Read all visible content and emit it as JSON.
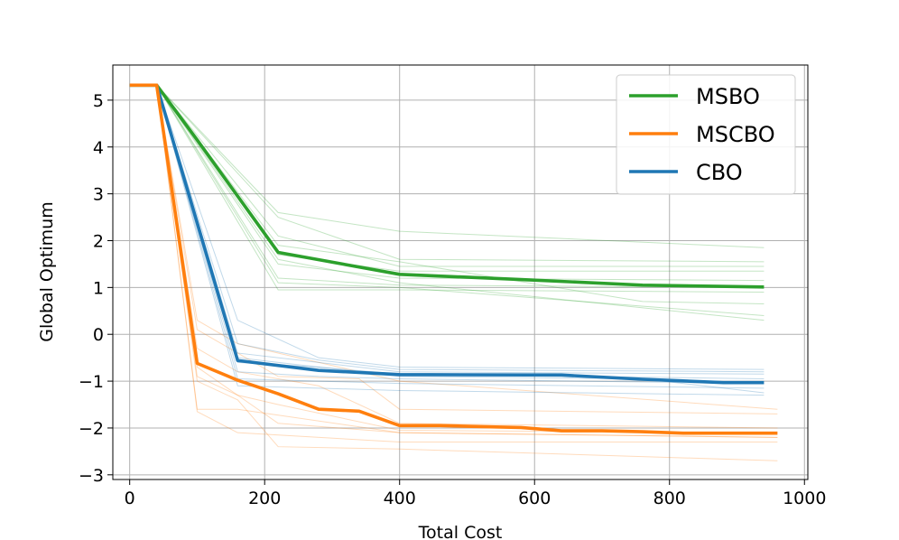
{
  "chart_data": {
    "type": "line",
    "xlabel": "Total Cost",
    "ylabel": "Global Optimum",
    "xlim": [
      -25,
      1005
    ],
    "ylim": [
      -3.1,
      5.75
    ],
    "xticks": [
      0,
      200,
      400,
      600,
      800,
      1000
    ],
    "xtick_labels": [
      "0",
      "200",
      "400",
      "600",
      "800",
      "1000"
    ],
    "yticks": [
      -3,
      -2,
      -1,
      0,
      1,
      2,
      3,
      4,
      5
    ],
    "ytick_labels": [
      "−3",
      "−2",
      "−1",
      "0",
      "1",
      "2",
      "3",
      "4",
      "5"
    ],
    "grid": true,
    "legend_position": "top-right",
    "series": [
      {
        "name": "MSBO",
        "color": "#2ca02c",
        "x": [
          0,
          40,
          100,
          220,
          400,
          580,
          760,
          940
        ],
        "y": [
          5.32,
          5.32,
          4.15,
          1.75,
          1.28,
          1.17,
          1.05,
          1.01
        ],
        "runs": [
          {
            "x": [
              40,
              220,
              400,
              940
            ],
            "y": [
              5.32,
              2.6,
              2.2,
              1.85
            ]
          },
          {
            "x": [
              40,
              220,
              400,
              940
            ],
            "y": [
              5.32,
              2.5,
              1.6,
              1.55
            ]
          },
          {
            "x": [
              40,
              220,
              400,
              940
            ],
            "y": [
              5.32,
              2.1,
              1.45,
              1.45
            ]
          },
          {
            "x": [
              40,
              220,
              400,
              940
            ],
            "y": [
              5.32,
              1.7,
              1.35,
              1.35
            ]
          },
          {
            "x": [
              40,
              220,
              400,
              940
            ],
            "y": [
              5.32,
              1.5,
              1.2,
              1.15
            ]
          },
          {
            "x": [
              40,
              220,
              400,
              940
            ],
            "y": [
              5.32,
              1.2,
              1.05,
              1.0
            ]
          },
          {
            "x": [
              40,
              220,
              400,
              940
            ],
            "y": [
              5.32,
              0.95,
              0.95,
              0.9
            ]
          },
          {
            "x": [
              40,
              220,
              400,
              760,
              940
            ],
            "y": [
              5.32,
              1.9,
              1.55,
              0.7,
              0.65
            ]
          },
          {
            "x": [
              40,
              220,
              400,
              940
            ],
            "y": [
              5.32,
              1.1,
              1.0,
              0.4
            ]
          },
          {
            "x": [
              40,
              220,
              400,
              940
            ],
            "y": [
              5.32,
              1.6,
              1.1,
              0.3
            ]
          }
        ]
      },
      {
        "name": "MSCBO",
        "color": "#ff7f0e",
        "x": [
          0,
          40,
          100,
          160,
          220,
          280,
          340,
          400,
          460,
          520,
          580,
          640,
          700,
          760,
          820,
          880,
          960
        ],
        "y": [
          5.32,
          5.32,
          -0.62,
          -0.98,
          -1.27,
          -1.6,
          -1.64,
          -1.95,
          -1.95,
          -1.97,
          -1.99,
          -2.06,
          -2.06,
          -2.08,
          -2.11,
          -2.11,
          -2.11
        ],
        "runs": [
          {
            "x": [
              40,
              100,
              160,
              220,
              400,
              960
            ],
            "y": [
              5.32,
              0.3,
              -0.2,
              -0.4,
              -1.0,
              -1.6
            ]
          },
          {
            "x": [
              40,
              100,
              160,
              220,
              340,
              400,
              960
            ],
            "y": [
              5.32,
              0.1,
              -0.4,
              -0.9,
              -0.95,
              -1.6,
              -1.7
            ]
          },
          {
            "x": [
              40,
              100,
              160,
              280,
              400,
              960
            ],
            "y": [
              5.32,
              -0.3,
              -0.8,
              -1.1,
              -1.9,
              -2.0
            ]
          },
          {
            "x": [
              40,
              100,
              160,
              220,
              400,
              960
            ],
            "y": [
              5.32,
              -0.9,
              -1.3,
              -1.5,
              -2.05,
              -2.1
            ]
          },
          {
            "x": [
              40,
              100,
              160,
              400,
              960
            ],
            "y": [
              5.32,
              -1.6,
              -1.6,
              -2.1,
              -2.2
            ]
          },
          {
            "x": [
              40,
              100,
              160,
              220,
              400,
              960
            ],
            "y": [
              5.32,
              -1.0,
              -1.4,
              -2.4,
              -2.45,
              -2.7
            ]
          },
          {
            "x": [
              40,
              100,
              160,
              400,
              960
            ],
            "y": [
              5.32,
              -1.65,
              -2.1,
              -2.3,
              -2.3
            ]
          },
          {
            "x": [
              40,
              100,
              220,
              400,
              960
            ],
            "y": [
              5.32,
              -0.7,
              -1.9,
              -2.1,
              -2.2
            ]
          }
        ]
      },
      {
        "name": "CBO",
        "color": "#1f77b4",
        "x": [
          0,
          40,
          160,
          280,
          400,
          640,
          760,
          880,
          940
        ],
        "y": [
          5.32,
          5.32,
          -0.56,
          -0.77,
          -0.86,
          -0.87,
          -0.96,
          -1.03,
          -1.03
        ],
        "runs": [
          {
            "x": [
              40,
              160,
              280,
              400,
              940
            ],
            "y": [
              5.32,
              0.3,
              -0.5,
              -0.7,
              -0.75
            ]
          },
          {
            "x": [
              40,
              160,
              280,
              400,
              940
            ],
            "y": [
              5.32,
              -0.2,
              -0.55,
              -0.75,
              -0.8
            ]
          },
          {
            "x": [
              40,
              160,
              280,
              400,
              940
            ],
            "y": [
              5.32,
              -0.4,
              -0.6,
              -0.8,
              -0.85
            ]
          },
          {
            "x": [
              40,
              160,
              280,
              400,
              940
            ],
            "y": [
              5.32,
              -0.6,
              -0.7,
              -0.85,
              -0.95
            ]
          },
          {
            "x": [
              40,
              160,
              280,
              400,
              940
            ],
            "y": [
              5.32,
              -0.8,
              -0.9,
              -0.95,
              -1.05
            ]
          },
          {
            "x": [
              40,
              160,
              280,
              400,
              940
            ],
            "y": [
              5.32,
              -0.95,
              -1.0,
              -1.05,
              -1.15
            ]
          },
          {
            "x": [
              40,
              160,
              400,
              940
            ],
            "y": [
              5.32,
              -1.1,
              -1.2,
              -1.3
            ]
          },
          {
            "x": [
              40,
              160,
              400,
              760,
              940
            ],
            "y": [
              5.32,
              -0.5,
              -0.9,
              -0.95,
              -1.25
            ]
          }
        ]
      }
    ]
  }
}
